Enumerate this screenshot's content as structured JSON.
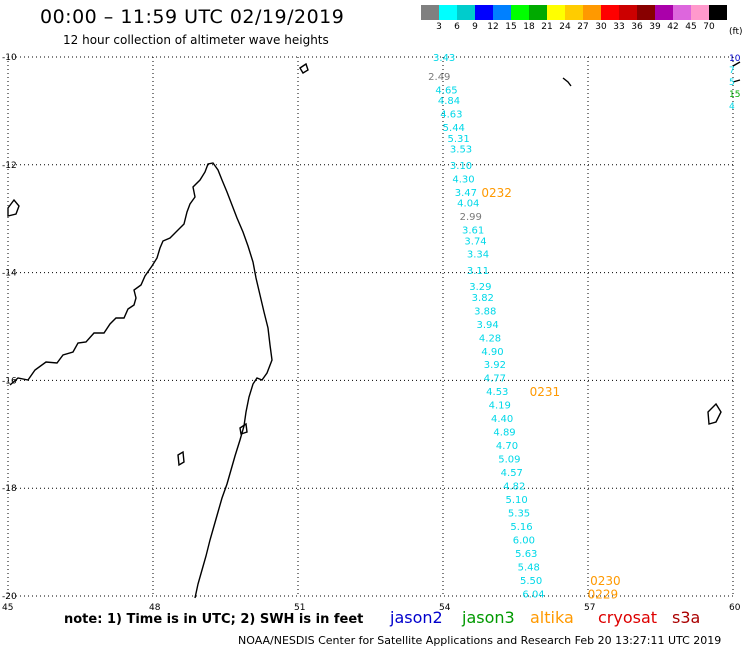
{
  "header": {
    "title": "00:00 – 11:59 UTC 02/19/2019",
    "subtitle": "12 hour collection of altimeter wave heights"
  },
  "colorbar": {
    "unit": "(ft)",
    "colors": [
      "#808080",
      "#00ffff",
      "#00cccc",
      "#0000ff",
      "#0080ff",
      "#00ff00",
      "#00aa00",
      "#ffff00",
      "#ffcc00",
      "#ff9900",
      "#ff0000",
      "#cc0000",
      "#880000",
      "#aa00aa",
      "#dd66dd",
      "#ff99cc",
      "#000000"
    ],
    "labels": [
      "3",
      "6",
      "9",
      "12",
      "15",
      "18",
      "21",
      "24",
      "27",
      "30",
      "33",
      "36",
      "39",
      "42",
      "45",
      "70"
    ]
  },
  "footer": {
    "note": "note: 1) Time is in UTC; 2) SWH is in feet",
    "credits": "NOAA/NESDIS Center for Satellite Applications and Research   Feb 20 13:27:11 UTC 2019"
  },
  "satellites": [
    {
      "name": "jason2",
      "color": "#0000cc"
    },
    {
      "name": "jason3",
      "color": "#009900"
    },
    {
      "name": "altika",
      "color": "#ff9900"
    },
    {
      "name": "cryosat",
      "color": "#dd0000"
    },
    {
      "name": "s3a",
      "color": "#aa0000"
    }
  ],
  "chart_data": {
    "type": "scatter",
    "title": "00:00 – 11:59 UTC 02/19/2019",
    "subtitle": "12 hour collection of altimeter wave heights",
    "xaxis": {
      "range": [
        45,
        60
      ],
      "ticks": [
        45,
        48,
        51,
        54,
        57,
        60
      ]
    },
    "yaxis": {
      "range": [
        -20,
        -10
      ],
      "ticks": [
        -10,
        -12,
        -14,
        -16,
        -18,
        -20
      ]
    },
    "grid": true,
    "legend_placement": "bottom",
    "unit": "feet",
    "series": [
      {
        "name": "altika",
        "points": [
          {
            "lon": 54.0,
            "lat": -10.0,
            "swh": 3.43
          },
          {
            "lon": 53.9,
            "lat": -10.35,
            "swh": 2.49
          },
          {
            "lon": 54.05,
            "lat": -10.6,
            "swh": 4.65
          },
          {
            "lon": 54.1,
            "lat": -10.8,
            "swh": 4.84
          },
          {
            "lon": 54.15,
            "lat": -11.05,
            "swh": 4.63
          },
          {
            "lon": 54.2,
            "lat": -11.3,
            "swh": 5.44
          },
          {
            "lon": 54.3,
            "lat": -11.5,
            "swh": 5.31
          },
          {
            "lon": 54.35,
            "lat": -11.7,
            "swh": 3.53
          },
          {
            "lon": 54.35,
            "lat": -12.0,
            "swh": 3.1
          },
          {
            "lon": 54.4,
            "lat": -12.25,
            "swh": 4.3
          },
          {
            "lon": 54.45,
            "lat": -12.5,
            "swh": 3.47
          },
          {
            "lon": 54.5,
            "lat": -12.7,
            "swh": 4.04
          },
          {
            "lon": 54.55,
            "lat": -12.95,
            "swh": 2.99
          },
          {
            "lon": 54.6,
            "lat": -13.2,
            "swh": 3.61
          },
          {
            "lon": 54.65,
            "lat": -13.4,
            "swh": 3.74
          },
          {
            "lon": 54.7,
            "lat": -13.65,
            "swh": 3.34
          },
          {
            "lon": 54.7,
            "lat": -13.95,
            "swh": 3.11
          },
          {
            "lon": 54.75,
            "lat": -14.25,
            "swh": 3.29
          },
          {
            "lon": 54.8,
            "lat": -14.45,
            "swh": 3.82
          },
          {
            "lon": 54.85,
            "lat": -14.7,
            "swh": 3.88
          },
          {
            "lon": 54.9,
            "lat": -14.95,
            "swh": 3.94
          },
          {
            "lon": 54.95,
            "lat": -15.2,
            "swh": 4.28
          },
          {
            "lon": 55.0,
            "lat": -15.45,
            "swh": 4.9
          },
          {
            "lon": 55.05,
            "lat": -15.7,
            "swh": 3.92
          },
          {
            "lon": 55.05,
            "lat": -15.95,
            "swh": 4.77
          },
          {
            "lon": 55.1,
            "lat": -16.2,
            "swh": 4.53
          },
          {
            "lon": 55.15,
            "lat": -16.45,
            "swh": 4.19
          },
          {
            "lon": 55.2,
            "lat": -16.7,
            "swh": 4.4
          },
          {
            "lon": 55.25,
            "lat": -16.95,
            "swh": 4.89
          },
          {
            "lon": 55.3,
            "lat": -17.2,
            "swh": 4.7
          },
          {
            "lon": 55.35,
            "lat": -17.45,
            "swh": 5.09
          },
          {
            "lon": 55.4,
            "lat": -17.7,
            "swh": 4.57
          },
          {
            "lon": 55.45,
            "lat": -17.95,
            "swh": 4.82
          },
          {
            "lon": 55.5,
            "lat": -18.2,
            "swh": 5.1
          },
          {
            "lon": 55.55,
            "lat": -18.45,
            "swh": 5.35
          },
          {
            "lon": 55.6,
            "lat": -18.7,
            "swh": 5.16
          },
          {
            "lon": 55.65,
            "lat": -18.95,
            "swh": 6.0
          },
          {
            "lon": 55.7,
            "lat": -19.2,
            "swh": 5.63
          },
          {
            "lon": 55.75,
            "lat": -19.45,
            "swh": 5.48
          },
          {
            "lon": 55.8,
            "lat": -19.7,
            "swh": 5.5
          },
          {
            "lon": 55.85,
            "lat": -19.95,
            "swh": 6.04
          }
        ]
      }
    ],
    "time_labels": [
      {
        "lon": 55.0,
        "lat": -12.5,
        "text": "0232"
      },
      {
        "lon": 56.0,
        "lat": -16.2,
        "text": "0231"
      },
      {
        "lon": 57.25,
        "lat": -19.7,
        "text": "0230"
      },
      {
        "lon": 57.2,
        "lat": -19.95,
        "text": "0229"
      }
    ],
    "edge_values": [
      "10",
      "7",
      "5",
      "15",
      "4"
    ]
  }
}
